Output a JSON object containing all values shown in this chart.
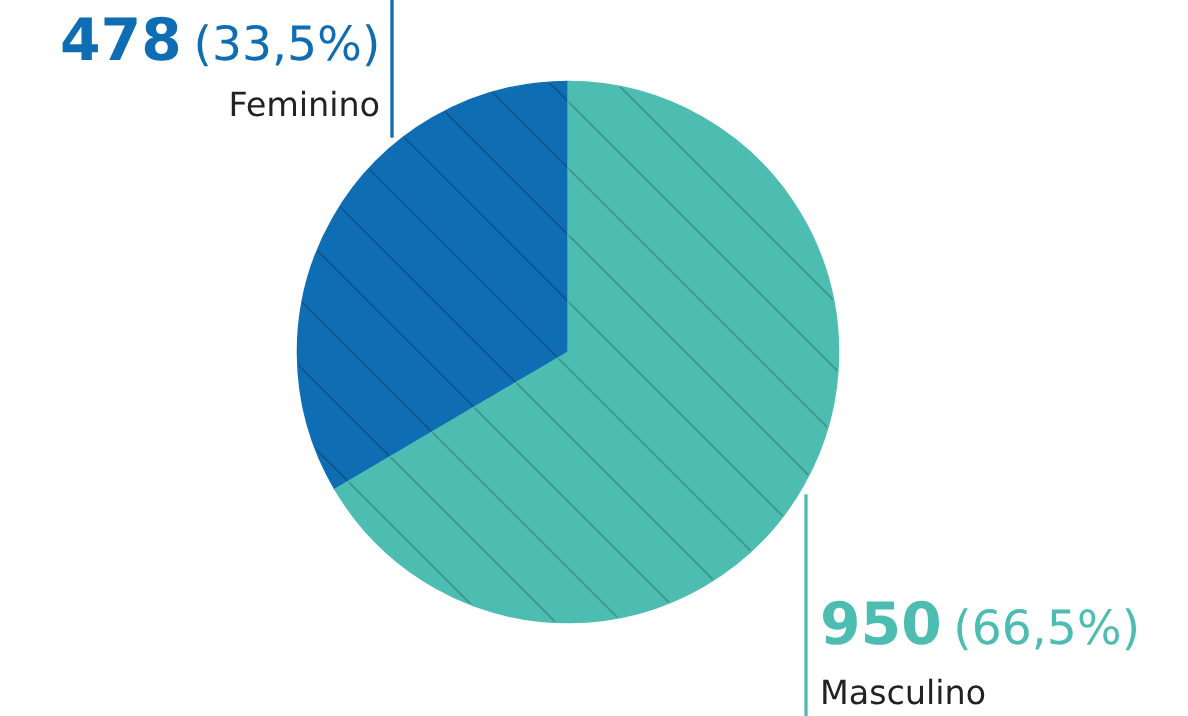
{
  "chart_data": {
    "type": "pie",
    "categories": [
      "Feminino",
      "Masculino"
    ],
    "values": [
      478,
      950
    ],
    "colors": [
      "#0f6db3",
      "#4dbdb1"
    ],
    "value_labels": [
      "478 (33,5%)",
      "950 (66,5%)"
    ]
  }
}
